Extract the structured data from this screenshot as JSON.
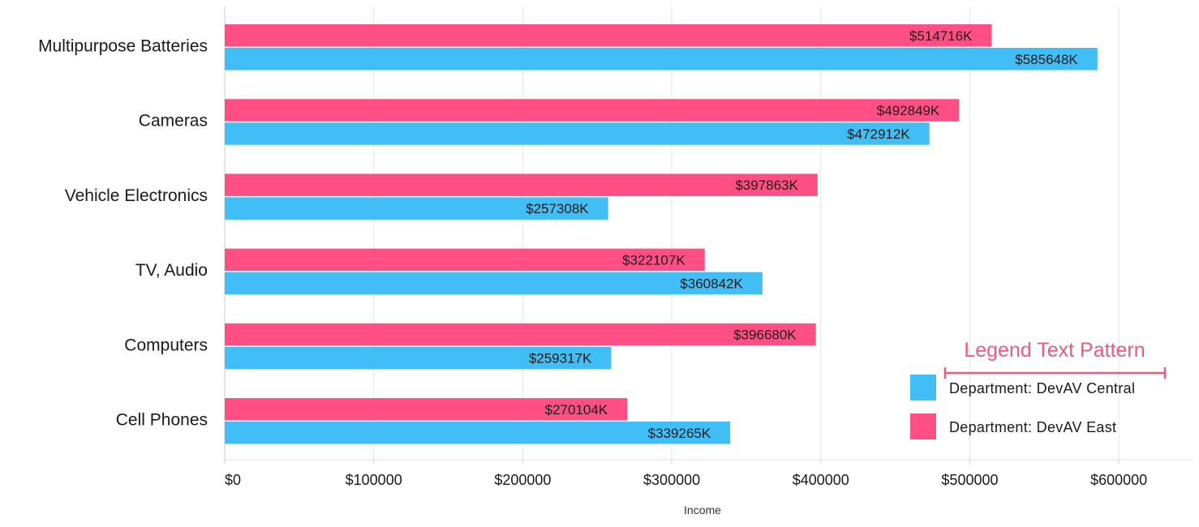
{
  "chart_data": {
    "type": "bar",
    "orientation": "horizontal",
    "categories": [
      "Multipurpose Batteries",
      "Cameras",
      "Vehicle Electronics",
      "TV, Audio",
      "Computers",
      "Cell Phones"
    ],
    "series": [
      {
        "name": "Department: DevAV East",
        "color": "#ff4f85",
        "values": [
          514716,
          492849,
          397863,
          322107,
          396680,
          270104
        ],
        "labels": [
          "$514716K",
          "$492849K",
          "$397863K",
          "$322107K",
          "$396680K",
          "$270104K"
        ]
      },
      {
        "name": "Department: DevAV Central",
        "color": "#41bef5",
        "values": [
          585648,
          472912,
          257308,
          360842,
          259317,
          339265
        ],
        "labels": [
          "$585648K",
          "$472912K",
          "$257308K",
          "$360842K",
          "$259317K",
          "$339265K"
        ]
      }
    ],
    "xlim": [
      0,
      650000
    ],
    "xticks": [
      0,
      100000,
      200000,
      300000,
      400000,
      500000,
      600000
    ],
    "xtick_labels": [
      "$0",
      "$100000",
      "$200000",
      "$300000",
      "$400000",
      "$500000",
      "$600000"
    ],
    "xlabel": "Income",
    "ylabel": "",
    "grid": true,
    "legend": {
      "title": "Legend Text Pattern",
      "title_color": "#f0587c",
      "placement": "bottom-right",
      "items": [
        {
          "label": "Department: DevAV Central",
          "color": "#41bef5"
        },
        {
          "label": "Department: DevAV East",
          "color": "#ff4f85"
        }
      ]
    }
  }
}
